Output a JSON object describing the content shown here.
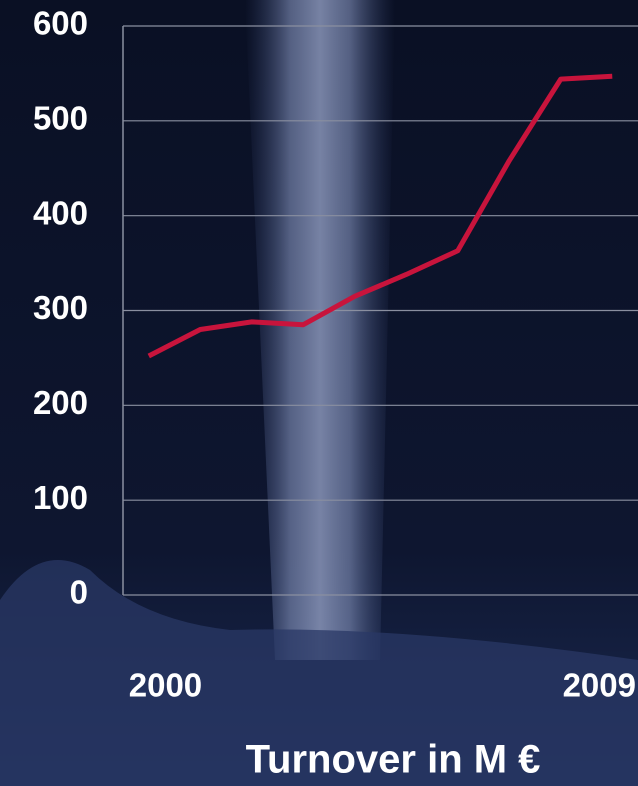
{
  "chart_data": {
    "type": "line",
    "title": "Turnover in M €",
    "categories": [
      "2000",
      null,
      null,
      null,
      null,
      null,
      null,
      null,
      null,
      "2009"
    ],
    "series": [
      {
        "name": "Turnover",
        "color": "#c8143c",
        "values": [
          252,
          280,
          288,
          285,
          315,
          338,
          363,
          458,
          544,
          547
        ]
      }
    ],
    "ylim": [
      0,
      600
    ],
    "yticks": [
      0,
      100,
      200,
      300,
      400,
      500,
      600
    ],
    "grid": true
  }
}
